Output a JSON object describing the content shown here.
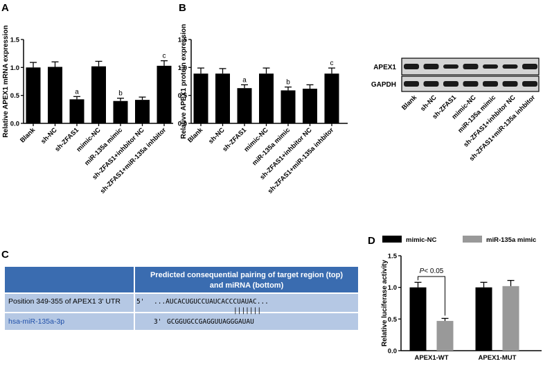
{
  "panels": {
    "a_letter": "A",
    "b_letter": "B",
    "c_letter": "C",
    "d_letter": "D"
  },
  "blot": {
    "bands": [
      "APEX1",
      "GAPDH"
    ],
    "lanes": [
      "Blank",
      "sh-NC",
      "sh-ZFAS1",
      "mimic-NC",
      "miR-135a mimic",
      "sh-ZFAS1+inhbitor NC",
      "sh-ZFAS1+miR-135a inhbitor"
    ]
  },
  "pairing_table": {
    "header": [
      "Predicted consequential pairing of target region (top)",
      "and miRNA (bottom)"
    ],
    "row1_label": "Position 349-355 of APEX1 3' UTR",
    "row1_prime": "5'",
    "row1_seq_pre": "...AUCACUGUCCUAUCA",
    "row1_seq_seed": "CCCUAUAC",
    "row1_seq_post": "...",
    "pair_marks": "|||||||",
    "row2_label": "hsa-miR-135a-3p",
    "row2_prime": "3'",
    "row2_seq_pre": "GCGGUGCCGAGGUUA",
    "row2_seq_seed": "GGGAUAU",
    "row2_seq_post": "",
    "header_color": "#3a6cb0",
    "cell_color": "#b5c8e4"
  },
  "chart_data": [
    {
      "id": "A",
      "type": "bar",
      "ylabel": "Relative APEX1 mRNA expression",
      "ylim": [
        0,
        1.5
      ],
      "yticks": [
        "0.0",
        "0.5",
        "1.0",
        "1.5"
      ],
      "categories": [
        "Blank",
        "sh-NC",
        "sh-ZFAS1",
        "mimic-NC",
        "miR-135a mimic",
        "sh-ZFAS1+inhbitor NC",
        "sh-ZFAS1+miR-135a inhbitor"
      ],
      "values": [
        1.0,
        1.01,
        0.43,
        1.02,
        0.4,
        0.42,
        1.03
      ],
      "errors": [
        0.09,
        0.09,
        0.05,
        0.09,
        0.05,
        0.05,
        0.09
      ],
      "annotations": [
        "",
        "",
        "a",
        "",
        "b",
        "",
        "c"
      ],
      "color": "#000000"
    },
    {
      "id": "B",
      "type": "bar",
      "ylabel": "Relative APEX1 protein expression",
      "ylim": [
        0,
        1.5
      ],
      "yticks": [
        "0.0",
        "0.5",
        "1.0",
        "1.5"
      ],
      "categories": [
        "Blank",
        "sh-NC",
        "sh-ZFAS1",
        "mimic-NC",
        "miR-135a mimic",
        "sh-ZFAS1+inhbitor NC",
        "sh-ZFAS1+miR-135a inhbitor"
      ],
      "values": [
        0.89,
        0.89,
        0.63,
        0.89,
        0.59,
        0.62,
        0.89
      ],
      "errors": [
        0.1,
        0.09,
        0.06,
        0.1,
        0.06,
        0.07,
        0.1
      ],
      "annotations": [
        "",
        "",
        "a",
        "",
        "b",
        "",
        "c"
      ],
      "color": "#000000"
    },
    {
      "id": "D",
      "type": "bar",
      "ylabel": "Relative luciferase activity",
      "ylim": [
        0,
        1.5
      ],
      "yticks": [
        "0.0",
        "0.5",
        "1.0",
        "1.5"
      ],
      "categories": [
        "APEX1-WT",
        "APEX1-MUT"
      ],
      "series": [
        {
          "name": "mimic-NC",
          "values": [
            1.0,
            1.0
          ],
          "errors": [
            0.08,
            0.08
          ],
          "color": "#000000"
        },
        {
          "name": "miR-135a mimic",
          "values": [
            0.47,
            1.02
          ],
          "errors": [
            0.04,
            0.09
          ],
          "color": "#999999"
        }
      ],
      "significance": {
        "text_italic": "P",
        "text_rest": "< 0.05"
      },
      "legend": "top"
    }
  ]
}
